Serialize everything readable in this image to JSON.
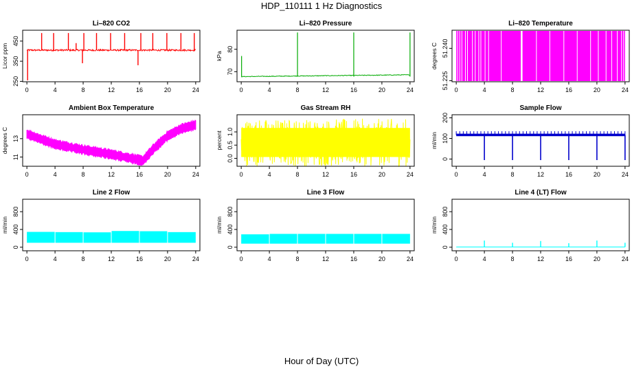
{
  "figure": {
    "title": "HDP_110111  1 Hz Diagnostics",
    "xlabel": "Hour of Day (UTC)"
  },
  "chart_data": [
    {
      "id": "co2",
      "type": "line",
      "title": "Li–820 CO2",
      "ylabel": "Licor ppm",
      "color": "#ff0000",
      "xlim": [
        -0.6,
        24.6
      ],
      "ylim": [
        248,
        504
      ],
      "xticks": [
        0,
        4,
        8,
        12,
        16,
        20,
        24
      ],
      "yticks": [
        250,
        350,
        450
      ],
      "baseline": 405,
      "noise": 4,
      "spikes": [
        {
          "x": 0.1,
          "y": 255
        },
        {
          "x": 2.1,
          "y": 490
        },
        {
          "x": 3.8,
          "y": 490
        },
        {
          "x": 5.9,
          "y": 490
        },
        {
          "x": 7.0,
          "y": 440
        },
        {
          "x": 7.9,
          "y": 340
        },
        {
          "x": 8.1,
          "y": 490
        },
        {
          "x": 9.9,
          "y": 490
        },
        {
          "x": 11.9,
          "y": 490
        },
        {
          "x": 13.9,
          "y": 490
        },
        {
          "x": 15.8,
          "y": 330
        },
        {
          "x": 16.2,
          "y": 490
        },
        {
          "x": 17.9,
          "y": 490
        },
        {
          "x": 19.9,
          "y": 490
        },
        {
          "x": 21.9,
          "y": 490
        },
        {
          "x": 23.8,
          "y": 490
        }
      ]
    },
    {
      "id": "pressure",
      "type": "line",
      "title": "Li–820 Pressure",
      "ylabel": "kPa",
      "color": "#00aa00",
      "xlim": [
        -0.6,
        24.6
      ],
      "ylim": [
        65.5,
        88.5
      ],
      "xticks": [
        0,
        4,
        8,
        12,
        16,
        20,
        24
      ],
      "yticks": [
        70,
        80
      ],
      "baseline_start": 67.8,
      "baseline_end": 68.6,
      "noise": 0.15,
      "spikes": [
        {
          "x": 0.05,
          "y": 77
        },
        {
          "x": 8.0,
          "y": 87.5
        },
        {
          "x": 16.0,
          "y": 87.5
        },
        {
          "x": 24.0,
          "y": 87.5
        }
      ]
    },
    {
      "id": "licor-temp",
      "type": "line",
      "title": "Li–820 Temperature",
      "ylabel": "degrees C",
      "color": "#ff00ff",
      "xlim": [
        -0.6,
        24.6
      ],
      "ylim": [
        51.2245,
        51.2484
      ],
      "xticks": [
        0,
        4,
        8,
        12,
        16,
        20,
        24
      ],
      "yticks": [
        51.225,
        51.24
      ],
      "ytick_labels": [
        "51.225",
        "51.240"
      ],
      "gaps": [
        0.2,
        0.5,
        0.8,
        1.3,
        1.6,
        2.3,
        2.7,
        3.2,
        3.5,
        4.1,
        4.6,
        6.4,
        9.3,
        11.4,
        13.3,
        15.3,
        17.2,
        19.1,
        20.2,
        21.3,
        22.1,
        22.9,
        23.5,
        23.8
      ]
    },
    {
      "id": "ambient-temp",
      "type": "line",
      "title": "Ambient Box Temperature",
      "ylabel": "degrees C",
      "color": "#ff00ff",
      "xlim": [
        -0.6,
        24.6
      ],
      "ylim": [
        10.0,
        15.6
      ],
      "xticks": [
        0,
        4,
        8,
        12,
        16,
        20,
        24
      ],
      "yticks": [
        11,
        13
      ],
      "curve": [
        {
          "x": 0,
          "y": 13.5
        },
        {
          "x": 4,
          "y": 12.4
        },
        {
          "x": 8,
          "y": 11.8
        },
        {
          "x": 12,
          "y": 11.3
        },
        {
          "x": 16.5,
          "y": 10.6
        },
        {
          "x": 18,
          "y": 11.9
        },
        {
          "x": 20,
          "y": 13.3
        },
        {
          "x": 22,
          "y": 14.1
        },
        {
          "x": 24,
          "y": 14.5
        }
      ],
      "band": 0.45
    },
    {
      "id": "rh",
      "type": "line",
      "title": "Gas Stream RH",
      "ylabel": "percent",
      "color": "#ffff00",
      "xlim": [
        -0.6,
        24.6
      ],
      "ylim": [
        -0.3,
        1.65
      ],
      "xticks": [
        0,
        4,
        8,
        12,
        16,
        20,
        24
      ],
      "yticks": [
        0.0,
        0.5,
        1.0
      ],
      "ytick_labels": [
        "0.0",
        "0.5",
        "1.0"
      ],
      "center": 0.6,
      "band": 0.9
    },
    {
      "id": "sample-flow",
      "type": "line",
      "title": "Sample Flow",
      "ylabel": "ml/min",
      "color": "#0000cc",
      "xlim": [
        -0.6,
        24.6
      ],
      "ylim": [
        -35,
        215
      ],
      "xticks": [
        0,
        4,
        8,
        12,
        16,
        20,
        24
      ],
      "yticks": [
        0,
        100,
        200
      ],
      "baseline": 117,
      "band": 12,
      "dips": [
        {
          "x": 4.0,
          "y": -5
        },
        {
          "x": 8.0,
          "y": -5
        },
        {
          "x": 12.0,
          "y": -5
        },
        {
          "x": 16.0,
          "y": -5
        },
        {
          "x": 20.0,
          "y": -5
        },
        {
          "x": 24.0,
          "y": -5
        }
      ]
    },
    {
      "id": "line2-flow",
      "type": "area",
      "title": "Line 2 Flow",
      "ylabel": "ml/min",
      "color": "#00ffff",
      "xlim": [
        -0.6,
        24.6
      ],
      "ylim": [
        -80,
        1080
      ],
      "xticks": [
        0,
        4,
        8,
        12,
        16,
        20,
        24
      ],
      "yticks": [
        0,
        400,
        800
      ],
      "segments": [
        {
          "x0": 0,
          "x1": 3.95,
          "low": 100,
          "high": 345
        },
        {
          "x0": 4.05,
          "x1": 7.95,
          "low": 100,
          "high": 340
        },
        {
          "x0": 8.05,
          "x1": 11.95,
          "low": 100,
          "high": 335
        },
        {
          "x0": 12.05,
          "x1": 15.95,
          "low": 100,
          "high": 365
        },
        {
          "x0": 16.05,
          "x1": 19.95,
          "low": 100,
          "high": 360
        },
        {
          "x0": 20.05,
          "x1": 24,
          "low": 100,
          "high": 340
        }
      ]
    },
    {
      "id": "line3-flow",
      "type": "area",
      "title": "Line 3 Flow",
      "ylabel": "ml/min",
      "color": "#00ffff",
      "xlim": [
        -0.6,
        24.6
      ],
      "ylim": [
        -80,
        1080
      ],
      "xticks": [
        0,
        4,
        8,
        12,
        16,
        20,
        24
      ],
      "yticks": [
        0,
        400,
        800
      ],
      "segments": [
        {
          "x0": 0,
          "x1": 3.95,
          "low": 80,
          "high": 290
        },
        {
          "x0": 4.05,
          "x1": 7.95,
          "low": 80,
          "high": 300
        },
        {
          "x0": 8.05,
          "x1": 11.95,
          "low": 80,
          "high": 300
        },
        {
          "x0": 12.05,
          "x1": 15.95,
          "low": 80,
          "high": 300
        },
        {
          "x0": 16.05,
          "x1": 19.95,
          "low": 80,
          "high": 300
        },
        {
          "x0": 20.05,
          "x1": 24,
          "low": 80,
          "high": 300
        }
      ]
    },
    {
      "id": "line4-flow",
      "type": "line",
      "title": "Line 4 (LT) Flow",
      "ylabel": "ml/min",
      "color": "#00ffff",
      "xlim": [
        -0.6,
        24.6
      ],
      "ylim": [
        -80,
        1080
      ],
      "xticks": [
        0,
        4,
        8,
        12,
        16,
        20,
        24
      ],
      "yticks": [
        0,
        400,
        800
      ],
      "baseline": 5,
      "spikes": [
        {
          "x": 4.0,
          "y": 150
        },
        {
          "x": 8.0,
          "y": 100
        },
        {
          "x": 12.0,
          "y": 140
        },
        {
          "x": 16.0,
          "y": 90
        },
        {
          "x": 20.0,
          "y": 150
        },
        {
          "x": 24.0,
          "y": 100
        }
      ]
    }
  ]
}
